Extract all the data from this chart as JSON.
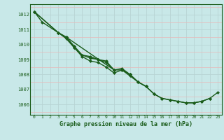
{
  "bg_color": "#c8e8e8",
  "plot_bg_color": "#c8e8e8",
  "grid_color_major": "#aacccc",
  "grid_color_minor": "#e8b0b0",
  "line_color": "#1a5c1a",
  "marker_color": "#1a5c1a",
  "title": "Graphe pression niveau de la mer (hPa)",
  "bottom_color": "#2d6b2d",
  "xlim": [
    -0.5,
    23.5
  ],
  "ylim": [
    1005.3,
    1012.7
  ],
  "yticks": [
    1006,
    1007,
    1008,
    1009,
    1010,
    1011,
    1012
  ],
  "xticks": [
    0,
    1,
    2,
    3,
    4,
    5,
    6,
    7,
    8,
    9,
    10,
    11,
    12,
    13,
    14,
    15,
    16,
    17,
    18,
    19,
    20,
    21,
    22,
    23
  ],
  "series1_x": [
    0,
    1,
    3,
    4,
    5,
    6,
    7,
    8,
    9,
    10,
    11,
    12,
    13,
    14,
    15,
    16,
    17,
    18,
    19,
    20,
    21,
    22
  ],
  "series1_y": [
    1012.2,
    1011.5,
    1010.8,
    1010.5,
    1009.8,
    1009.3,
    1009.1,
    1009.0,
    1008.8,
    1008.3,
    1008.3,
    1008.0,
    1007.5,
    1007.2,
    1006.7,
    1006.4,
    1006.3,
    1006.2,
    1006.1,
    1006.1,
    1006.2,
    1006.4
  ],
  "series2_x": [
    0,
    3,
    4,
    5,
    6,
    7,
    8,
    9,
    10,
    11,
    12,
    13,
    14
  ],
  "series2_y": [
    1012.2,
    1010.8,
    1010.4,
    1009.8,
    1009.2,
    1008.9,
    1008.8,
    1008.5,
    1008.1,
    1008.3,
    1007.9,
    1007.5,
    1007.2
  ],
  "series3_x": [
    0,
    3,
    4,
    5,
    6,
    7,
    8,
    9,
    10
  ],
  "series3_y": [
    1012.2,
    1010.8,
    1010.5,
    1009.9,
    1009.3,
    1009.2,
    1009.0,
    1008.9,
    1008.3
  ],
  "series4_x": [
    4,
    10,
    11,
    12,
    13,
    14,
    15,
    16,
    17,
    18,
    19,
    20,
    21,
    22,
    23
  ],
  "series4_y": [
    1010.5,
    1008.3,
    1008.4,
    1008.0,
    1007.5,
    1007.2,
    1006.7,
    1006.4,
    1006.3,
    1006.2,
    1006.1,
    1006.1,
    1006.2,
    1006.4,
    1006.8
  ]
}
